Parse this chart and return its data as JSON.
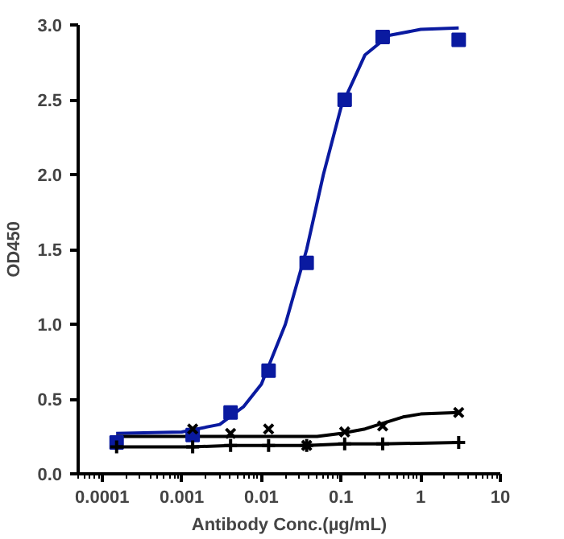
{
  "chart_data": {
    "type": "scatter",
    "xlabel": "Antibody Conc.(µg/mL)",
    "ylabel": "OD450",
    "log": "x",
    "grid": false,
    "xlim": [
      5e-05,
      10
    ],
    "xticks": [
      {
        "value": 0.0001,
        "label": "0.0001"
      },
      {
        "value": 0.001,
        "label": "0.001"
      },
      {
        "value": 0.01,
        "label": "0.01"
      },
      {
        "value": 0.1,
        "label": "0.1"
      },
      {
        "value": 1,
        "label": "1"
      },
      {
        "value": 10,
        "label": "10"
      }
    ],
    "ylim": [
      0,
      3.0
    ],
    "yticks": [
      {
        "value": 0,
        "label": "0.0"
      },
      {
        "value": 0.5,
        "label": "0.5"
      },
      {
        "value": 1,
        "label": "1.0"
      },
      {
        "value": 1.5,
        "label": "1.5"
      },
      {
        "value": 2,
        "label": "2.0"
      },
      {
        "value": 2.5,
        "label": "2.5"
      },
      {
        "value": 3,
        "label": "3.0"
      }
    ],
    "series": [
      {
        "type": "line",
        "color": "#0a1aa0",
        "x": [
          0.00015,
          0.001,
          0.003,
          0.006,
          0.01,
          0.02,
          0.037,
          0.06,
          0.1,
          0.2,
          0.4,
          1,
          3
        ],
        "values": [
          0.27,
          0.28,
          0.33,
          0.45,
          0.6,
          1.0,
          1.5,
          2.0,
          2.45,
          2.8,
          2.93,
          2.97,
          2.98
        ]
      },
      {
        "type": "line",
        "color": "#000000",
        "x": [
          0.00015,
          0.001,
          0.01,
          0.05,
          0.1,
          0.2,
          0.3,
          0.6,
          1,
          3
        ],
        "values": [
          0.25,
          0.25,
          0.25,
          0.25,
          0.27,
          0.3,
          0.33,
          0.38,
          0.4,
          0.41
        ]
      },
      {
        "color": "#0a1aa0",
        "marker": "square",
        "x": [
          0.000152,
          0.00137,
          0.0041,
          0.0123,
          0.037,
          0.111,
          0.333,
          3
        ],
        "values": [
          0.21,
          0.26,
          0.41,
          0.69,
          1.41,
          2.5,
          2.92,
          2.9
        ]
      },
      {
        "color": "#000000",
        "marker": "x",
        "x": [
          0.00137,
          0.0041,
          0.0123,
          0.037,
          0.111,
          0.333,
          3
        ],
        "values": [
          0.3,
          0.27,
          0.3,
          0.19,
          0.28,
          0.32,
          0.41
        ]
      },
      {
        "type": "line",
        "color": "#000000",
        "marker": "cross",
        "x": [
          0.000152,
          0.00137,
          0.0041,
          0.0123,
          0.037,
          0.111,
          0.333,
          3
        ],
        "values": [
          0.18,
          0.18,
          0.19,
          0.19,
          0.19,
          0.2,
          0.2,
          0.21
        ]
      }
    ]
  }
}
